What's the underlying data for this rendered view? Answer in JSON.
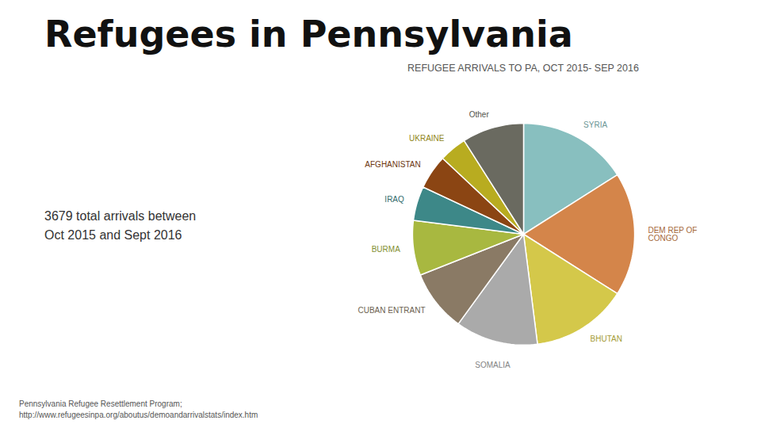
{
  "chart_data": {
    "type": "pie",
    "title": "Refugees in Pennsylvania",
    "subtitle": "REFUGEE ARRIVALS TO PA, OCT 2015- SEP 2016",
    "annotations": [
      "3679 total arrivals between",
      "Oct 2015 and Sept 2016"
    ],
    "caption": [
      "Pennsylvania Refugee Resettlement Program;",
      "http://www.refugeesinpa.org/aboutus/demoandarrivalstats/index.htm"
    ],
    "categories": [
      "SYRIA",
      "DEM REP OF\nCONGO",
      "BHUTAN",
      "SOMALIA",
      "CUBAN ENTRANT",
      "BURMA",
      "IRAQ",
      "AFGHANISTAN",
      "UKRAINE",
      "Other"
    ],
    "values": [
      16,
      18,
      14,
      12,
      9,
      8,
      5,
      5,
      4,
      9
    ],
    "colors": [
      "#88bfbf",
      "#d4854a",
      "#d4c84a",
      "#aaaaaa",
      "#8a7a65",
      "#a8b840",
      "#3d8888",
      "#8b4513",
      "#b8ac20",
      "#6a6a60"
    ],
    "legend": false,
    "data_labels": false
  }
}
